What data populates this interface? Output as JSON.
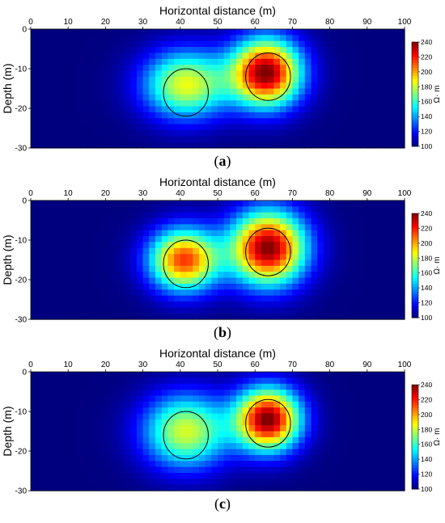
{
  "chart_data": [
    {
      "type": "heatmap",
      "caption_label": "a",
      "xlabel": "Horizontal distance (m)",
      "ylabel": "Depth (m)",
      "xlim": [
        0,
        100
      ],
      "ylim": [
        -30,
        0
      ],
      "xticks": [
        0,
        10,
        20,
        30,
        40,
        50,
        60,
        70,
        80,
        90,
        100
      ],
      "yticks": [
        0,
        -10,
        -20,
        -30
      ],
      "colorbar": {
        "label": "Ω· m",
        "min": 100,
        "max": 240,
        "ticks": [
          240,
          220,
          200,
          180,
          160,
          140,
          120,
          100
        ]
      },
      "background_value": 100,
      "anomalies": [
        {
          "center_x": 41.5,
          "center_depth": -14,
          "peak": 185,
          "spread_x": 8,
          "spread_depth": 6
        },
        {
          "center_x": 63,
          "center_depth": -11,
          "peak": 240,
          "spread_x": 6.5,
          "spread_depth": 6
        }
      ],
      "circles": [
        {
          "center_x": 41.5,
          "center_depth": -16,
          "radius": 6
        },
        {
          "center_x": 63.5,
          "center_depth": -12,
          "radius": 6
        }
      ]
    },
    {
      "type": "heatmap",
      "caption_label": "b",
      "xlabel": "Horizontal distance (m)",
      "ylabel": "Depth (m)",
      "xlim": [
        0,
        100
      ],
      "ylim": [
        -30,
        0
      ],
      "xticks": [
        0,
        10,
        20,
        30,
        40,
        50,
        60,
        70,
        80,
        90,
        100
      ],
      "yticks": [
        0,
        -10,
        -20,
        -30
      ],
      "colorbar": {
        "label": "Ω· m",
        "min": 100,
        "max": 240,
        "ticks": [
          240,
          220,
          200,
          180,
          160,
          140,
          120,
          100
        ]
      },
      "background_value": 100,
      "anomalies": [
        {
          "center_x": 41,
          "center_depth": -15,
          "peak": 215,
          "spread_x": 6.5,
          "spread_depth": 5.5
        },
        {
          "center_x": 63.5,
          "center_depth": -12,
          "peak": 240,
          "spread_x": 7,
          "spread_depth": 6.5
        }
      ],
      "circles": [
        {
          "center_x": 41.5,
          "center_depth": -16,
          "radius": 6
        },
        {
          "center_x": 63.5,
          "center_depth": -13,
          "radius": 6
        }
      ]
    },
    {
      "type": "heatmap",
      "caption_label": "c",
      "xlabel": "Horizontal distance (m)",
      "ylabel": "Depth (m)",
      "xlim": [
        0,
        100
      ],
      "ylim": [
        -30,
        0
      ],
      "xticks": [
        0,
        10,
        20,
        30,
        40,
        50,
        60,
        70,
        80,
        90,
        100
      ],
      "yticks": [
        0,
        -10,
        -20,
        -30
      ],
      "colorbar": {
        "label": "Ω· m",
        "min": 100,
        "max": 240,
        "ticks": [
          240,
          220,
          200,
          180,
          160,
          140,
          120,
          100
        ]
      },
      "background_value": 100,
      "anomalies": [
        {
          "center_x": 41.5,
          "center_depth": -15,
          "peak": 182,
          "spread_x": 8,
          "spread_depth": 6.5
        },
        {
          "center_x": 63.5,
          "center_depth": -12,
          "peak": 240,
          "spread_x": 6,
          "spread_depth": 5.5
        }
      ],
      "circles": [
        {
          "center_x": 41.5,
          "center_depth": -16,
          "radius": 6
        },
        {
          "center_x": 63.5,
          "center_depth": -13,
          "radius": 6
        }
      ]
    }
  ],
  "colormap": [
    "#00007f",
    "#0000ff",
    "#007fff",
    "#00ffff",
    "#7fff7f",
    "#ffff00",
    "#ff7f00",
    "#ff0000",
    "#7f0000"
  ]
}
